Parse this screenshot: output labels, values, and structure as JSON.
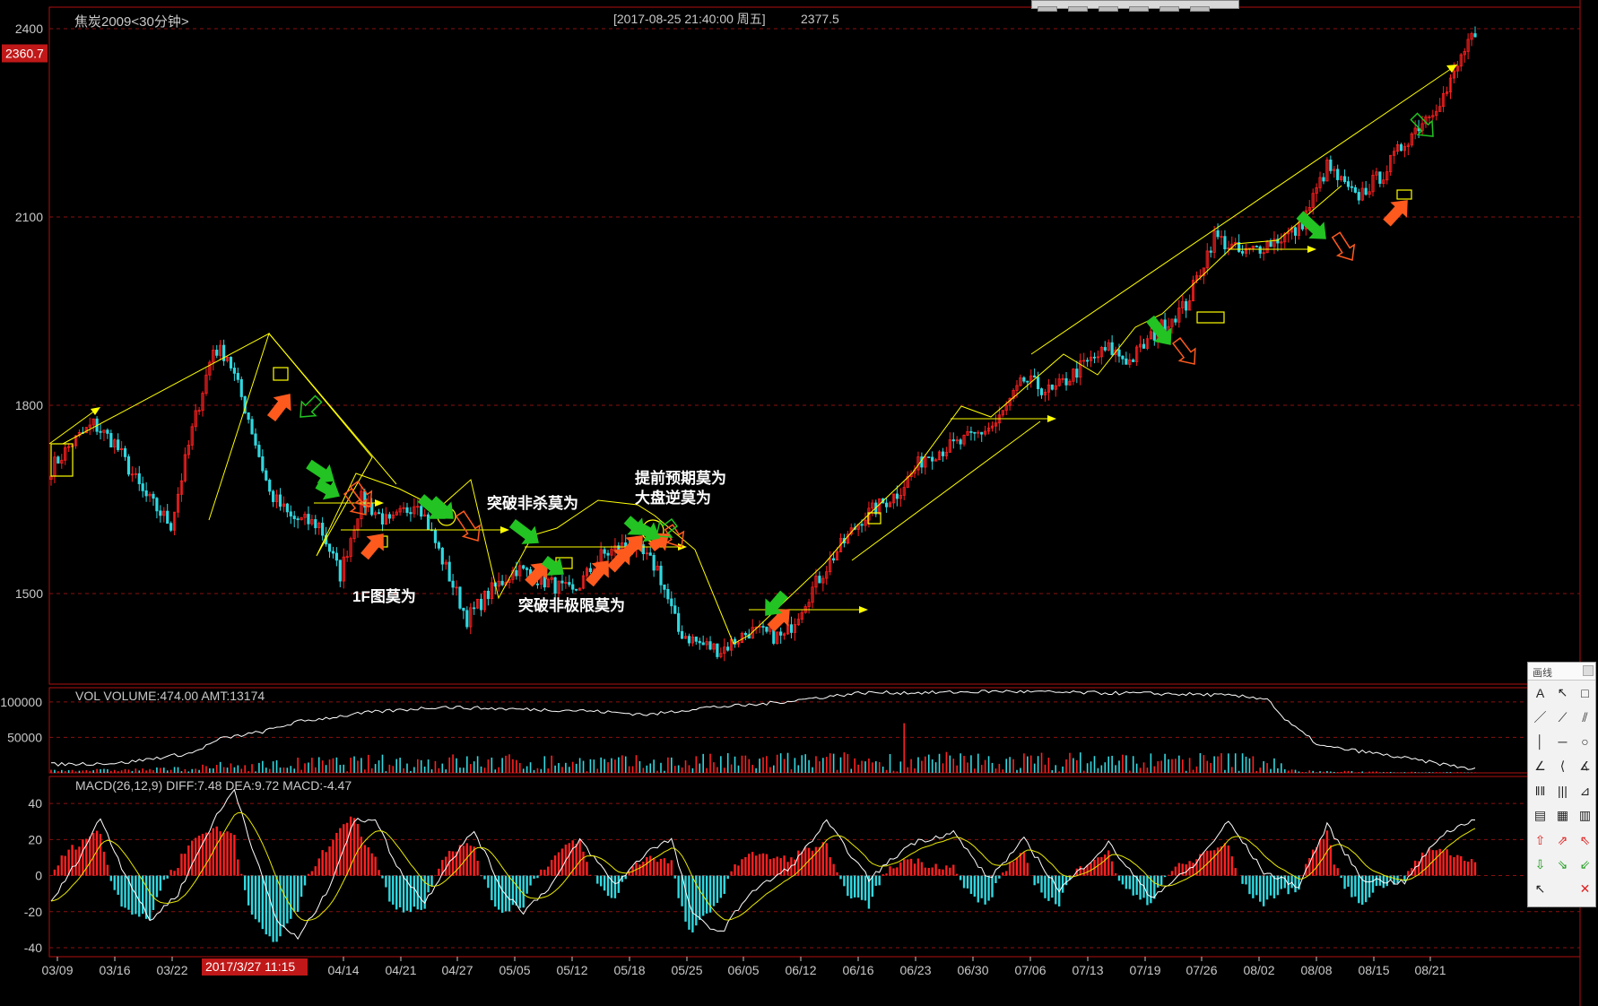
{
  "window": {
    "instrument_title": "焦炭2009<30分钟>",
    "cursor_datetime": "[2017-08-25  21:40:00 周五]",
    "cursor_price": "2377.5"
  },
  "price_panel": {
    "axis_ticks": [
      "2400",
      "2100",
      "1800",
      "1500"
    ],
    "current_price_badge": "2360.7",
    "annotations": [
      "1F图莫为",
      "突破非杀莫为",
      "突破非极限莫为",
      "提前预期莫为",
      "大盘逆莫为"
    ]
  },
  "volume_panel": {
    "header": "VOL  VOLUME:474.00 AMT:13174",
    "axis_ticks": [
      "100000",
      "50000"
    ]
  },
  "macd_panel": {
    "header": "MACD(26,12,9)  DIFF:7.48 DEA:9.72 MACD:-4.47",
    "axis_ticks": [
      "40",
      "20",
      "0",
      "-20",
      "-40"
    ]
  },
  "x_axis": {
    "labels": [
      "03/09",
      "03/16",
      "03/22",
      "04/14",
      "04/21",
      "04/27",
      "05/05",
      "05/12",
      "05/18",
      "05/25",
      "06/05",
      "06/12",
      "06/16",
      "06/23",
      "06/30",
      "07/06",
      "07/13",
      "07/19",
      "07/26",
      "08/02",
      "08/08",
      "08/15",
      "08/21"
    ],
    "cursor_label": "2017/3/27 11:15"
  },
  "draw_panel": {
    "title": "画线",
    "tools": [
      "A",
      "↖",
      "□",
      "／",
      "⟋",
      "⫽",
      "│",
      "─",
      "○",
      "∠",
      "⟨",
      "∡",
      "‖‖",
      "|||",
      "⊿",
      "▤",
      "▦",
      "▥",
      "⇧",
      "⇗",
      "⇖",
      "⇩",
      "⇘",
      "⇙",
      "↖",
      "",
      "✕"
    ]
  },
  "colors": {
    "up": "#ff2020",
    "down": "#30d8e0",
    "trend_line": "#ffff00",
    "buy_arrow": "#ff5a1e",
    "sell_arrow": "#22c322",
    "grid": "#8a1010",
    "frame": "#b01010",
    "badge": "#c01818",
    "avg_line": "#ffffff"
  },
  "chart_data": [
    {
      "type": "candlestick",
      "title": "焦炭2009<30分钟>",
      "ylim": [
        1370,
        2420
      ],
      "y_ticks": [
        2400,
        2100,
        1800,
        1500
      ],
      "x_labels": [
        "03/09",
        "03/16",
        "03/22",
        "04/14",
        "04/21",
        "04/27",
        "05/05",
        "05/12",
        "05/18",
        "05/25",
        "06/05",
        "06/12",
        "06/16",
        "06/23",
        "06/30",
        "07/06",
        "07/13",
        "07/19",
        "07/26",
        "08/02",
        "08/08",
        "08/15",
        "08/21"
      ],
      "close_path": [
        [
          0,
          1700
        ],
        [
          6,
          1740
        ],
        [
          12,
          1770
        ],
        [
          18,
          1740
        ],
        [
          26,
          1660
        ],
        [
          34,
          1610
        ],
        [
          40,
          1760
        ],
        [
          46,
          1890
        ],
        [
          50,
          1880
        ],
        [
          56,
          1780
        ],
        [
          62,
          1660
        ],
        [
          68,
          1620
        ],
        [
          76,
          1610
        ],
        [
          82,
          1530
        ],
        [
          88,
          1650
        ],
        [
          96,
          1610
        ],
        [
          104,
          1650
        ],
        [
          112,
          1540
        ],
        [
          118,
          1460
        ],
        [
          124,
          1500
        ],
        [
          132,
          1540
        ],
        [
          140,
          1520
        ],
        [
          148,
          1500
        ],
        [
          156,
          1560
        ],
        [
          164,
          1580
        ],
        [
          172,
          1540
        ],
        [
          178,
          1440
        ],
        [
          184,
          1420
        ],
        [
          190,
          1410
        ],
        [
          198,
          1440
        ],
        [
          208,
          1430
        ],
        [
          214,
          1490
        ],
        [
          222,
          1560
        ],
        [
          230,
          1620
        ],
        [
          240,
          1660
        ],
        [
          248,
          1720
        ],
        [
          258,
          1740
        ],
        [
          268,
          1770
        ],
        [
          276,
          1840
        ],
        [
          284,
          1820
        ],
        [
          292,
          1860
        ],
        [
          300,
          1890
        ],
        [
          306,
          1870
        ],
        [
          314,
          1920
        ],
        [
          322,
          1960
        ],
        [
          330,
          2070
        ],
        [
          338,
          2040
        ],
        [
          346,
          2060
        ],
        [
          354,
          2080
        ],
        [
          362,
          2180
        ],
        [
          370,
          2130
        ],
        [
          378,
          2170
        ],
        [
          384,
          2220
        ],
        [
          390,
          2260
        ],
        [
          396,
          2300
        ],
        [
          402,
          2380
        ],
        [
          404,
          2380
        ]
      ]
    },
    {
      "type": "bar",
      "title": "VOL",
      "header": "VOLUME:474.00 AMT:13174",
      "ylim": [
        0,
        120000
      ],
      "y_ticks": [
        100000,
        50000
      ],
      "open_interest_path": [
        [
          0,
          12000
        ],
        [
          20,
          14000
        ],
        [
          40,
          28000
        ],
        [
          48,
          48000
        ],
        [
          60,
          58000
        ],
        [
          70,
          72000
        ],
        [
          90,
          85000
        ],
        [
          110,
          93000
        ],
        [
          130,
          90000
        ],
        [
          150,
          88000
        ],
        [
          170,
          82000
        ],
        [
          185,
          92000
        ],
        [
          200,
          96000
        ],
        [
          230,
          113000
        ],
        [
          250,
          113000
        ],
        [
          270,
          115000
        ],
        [
          290,
          113000
        ],
        [
          310,
          112000
        ],
        [
          330,
          110000
        ],
        [
          345,
          105000
        ],
        [
          350,
          75000
        ],
        [
          360,
          38000
        ],
        [
          375,
          28000
        ],
        [
          395,
          12000
        ],
        [
          404,
          5000
        ]
      ]
    },
    {
      "type": "bar",
      "title": "MACD(26,12,9)",
      "series_names": [
        "DIFF",
        "DEA",
        "MACD"
      ],
      "last_values": {
        "DIFF": 7.48,
        "DEA": 9.72,
        "MACD": -4.47
      },
      "ylim": [
        -45,
        55
      ],
      "y_ticks": [
        40,
        20,
        0,
        -20,
        -40
      ],
      "diff_path": [
        [
          0,
          -15
        ],
        [
          8,
          10
        ],
        [
          14,
          32
        ],
        [
          20,
          5
        ],
        [
          28,
          -25
        ],
        [
          36,
          -10
        ],
        [
          46,
          30
        ],
        [
          52,
          48
        ],
        [
          58,
          10
        ],
        [
          64,
          -25
        ],
        [
          70,
          -35
        ],
        [
          78,
          -10
        ],
        [
          86,
          30
        ],
        [
          92,
          32
        ],
        [
          98,
          5
        ],
        [
          106,
          -15
        ],
        [
          112,
          5
        ],
        [
          120,
          25
        ],
        [
          128,
          -8
        ],
        [
          134,
          -20
        ],
        [
          142,
          -5
        ],
        [
          150,
          20
        ],
        [
          160,
          -5
        ],
        [
          170,
          15
        ],
        [
          176,
          20
        ],
        [
          182,
          -22
        ],
        [
          190,
          -32
        ],
        [
          198,
          -10
        ],
        [
          210,
          5
        ],
        [
          220,
          30
        ],
        [
          232,
          -2
        ],
        [
          244,
          18
        ],
        [
          256,
          24
        ],
        [
          266,
          -2
        ],
        [
          276,
          20
        ],
        [
          286,
          -8
        ],
        [
          300,
          18
        ],
        [
          312,
          -12
        ],
        [
          324,
          5
        ],
        [
          334,
          30
        ],
        [
          344,
          2
        ],
        [
          354,
          -6
        ],
        [
          362,
          28
        ],
        [
          372,
          -2
        ],
        [
          384,
          -4
        ],
        [
          394,
          22
        ],
        [
          404,
          32
        ]
      ]
    }
  ]
}
